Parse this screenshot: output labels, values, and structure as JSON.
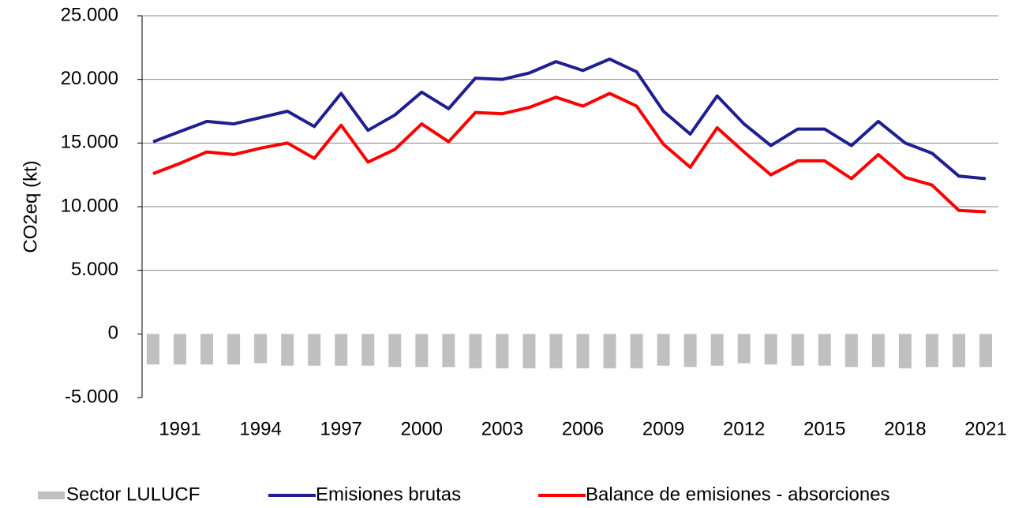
{
  "chart_data": {
    "type": "line",
    "y_label": "CO2eq (kt)",
    "categories": [
      null,
      "1991",
      null,
      null,
      "1994",
      null,
      null,
      "1997",
      null,
      null,
      "2000",
      null,
      null,
      "2003",
      null,
      null,
      "2006",
      null,
      null,
      "2009",
      null,
      null,
      "2012",
      null,
      null,
      "2015",
      null,
      null,
      "2018",
      null,
      null,
      "2021"
    ],
    "series": [
      {
        "name": "Sector LULUCF",
        "type": "bar",
        "color": "#c0c0c0",
        "values": [
          -2400,
          -2400,
          -2400,
          -2400,
          -2300,
          -2500,
          -2500,
          -2500,
          -2500,
          -2600,
          -2600,
          -2600,
          -2700,
          -2700,
          -2700,
          -2700,
          -2700,
          -2700,
          -2700,
          -2500,
          -2600,
          -2500,
          -2300,
          -2400,
          -2500,
          -2500,
          -2600,
          -2600,
          -2700,
          -2600,
          -2600,
          -2600
        ]
      },
      {
        "name": "Emisiones brutas",
        "type": "line",
        "color": "#1f1f8f",
        "values": [
          15100,
          15900,
          16700,
          16500,
          17000,
          17500,
          16300,
          18900,
          16000,
          17200,
          19000,
          17700,
          20100,
          20000,
          20500,
          21400,
          20700,
          21600,
          20600,
          17500,
          15700,
          18700,
          16500,
          14800,
          16100,
          16100,
          14800,
          16700,
          15000,
          14200,
          12400,
          12200
        ]
      },
      {
        "name": "Balance de emisiones - absorciones",
        "type": "line",
        "color": "#ff0000",
        "values": [
          12600,
          13400,
          14300,
          14100,
          14600,
          15000,
          13800,
          16400,
          13500,
          14500,
          16500,
          15100,
          17400,
          17300,
          17800,
          18600,
          17900,
          18900,
          17900,
          14900,
          13100,
          16200,
          14300,
          12500,
          13600,
          13600,
          12200,
          14100,
          12300,
          11700,
          9700,
          9600
        ]
      }
    ],
    "ylim": [
      -5000,
      25000
    ],
    "yticks": [
      {
        "value": -5000,
        "label": "-5.000"
      },
      0,
      {
        "value": 5000,
        "label": "5.000"
      },
      {
        "value": 10000,
        "label": "10.000"
      },
      {
        "value": 15000,
        "label": "15.000"
      },
      {
        "value": 20000,
        "label": "20.000"
      },
      {
        "value": 25000,
        "label": "25.000"
      }
    ],
    "grid": true,
    "legend": "bottom"
  }
}
